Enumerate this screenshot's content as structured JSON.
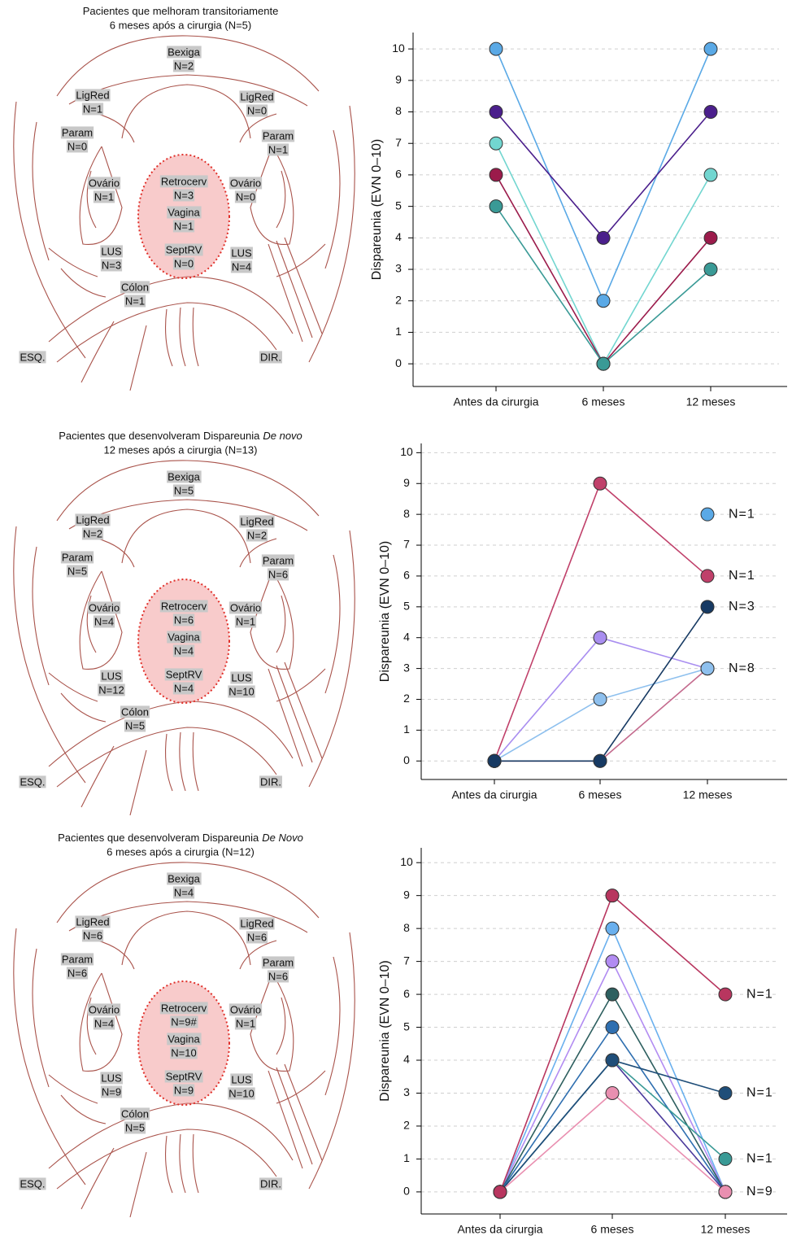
{
  "diagrams": [
    {
      "title": [
        "Pacientes que melhoram transitoriamente",
        "6 meses após a cirurgia (N=5)"
      ],
      "labels": [
        {
          "name": "Bexiga",
          "count": "N=2"
        },
        {
          "name": "LigRed",
          "count": "N=1"
        },
        {
          "name": "LigRed",
          "count": "N=0"
        },
        {
          "name": "Param",
          "count": "N=0"
        },
        {
          "name": "Param",
          "count": "N=1"
        },
        {
          "name": "Ovário",
          "count": "N=1"
        },
        {
          "name": "Ovário",
          "count": "N=0"
        },
        {
          "name": "Retrocerv",
          "count": "N=3"
        },
        {
          "name": "Vagina",
          "count": "N=1"
        },
        {
          "name": "SeptRV",
          "count": "N=0"
        },
        {
          "name": "LUS",
          "count": "N=3"
        },
        {
          "name": "LUS",
          "count": "N=4"
        },
        {
          "name": "Cólon",
          "count": "N=1"
        }
      ],
      "left": "ESQ.",
      "right": "DIR."
    },
    {
      "title": [
        "Pacientes que desenvolveram Dispareunia",
        "12 meses após a cirurgia (N=13)"
      ],
      "title_italic": "De novo",
      "labels": [
        {
          "name": "Bexiga",
          "count": "N=5"
        },
        {
          "name": "LigRed",
          "count": "N=2"
        },
        {
          "name": "LigRed",
          "count": "N=2"
        },
        {
          "name": "Param",
          "count": "N=5"
        },
        {
          "name": "Param",
          "count": "N=6"
        },
        {
          "name": "Ovário",
          "count": "N=4"
        },
        {
          "name": "Ovário",
          "count": "N=1"
        },
        {
          "name": "Retrocerv",
          "count": "N=6"
        },
        {
          "name": "Vagina",
          "count": "N=4"
        },
        {
          "name": "SeptRV",
          "count": "N=4"
        },
        {
          "name": "LUS",
          "count": "N=12"
        },
        {
          "name": "LUS",
          "count": "N=10"
        },
        {
          "name": "Cólon",
          "count": "N=5"
        }
      ],
      "left": "ESQ.",
      "right": "DIR."
    },
    {
      "title": [
        "Pacientes que desenvolveram Dispareunia",
        "6 meses após a cirurgia (N=12)"
      ],
      "title_italic": "De Novo",
      "labels": [
        {
          "name": "Bexiga",
          "count": "N=4"
        },
        {
          "name": "LigRed",
          "count": "N=6"
        },
        {
          "name": "LigRed",
          "count": "N=6"
        },
        {
          "name": "Param",
          "count": "N=6"
        },
        {
          "name": "Param",
          "count": "N=6"
        },
        {
          "name": "Ovário",
          "count": "N=4"
        },
        {
          "name": "Ovário",
          "count": "N=1"
        },
        {
          "name": "Retrocerv",
          "count": "N=9#"
        },
        {
          "name": "Vagina",
          "count": "N=10"
        },
        {
          "name": "SeptRV",
          "count": "N=9"
        },
        {
          "name": "LUS",
          "count": "N=9"
        },
        {
          "name": "LUS",
          "count": "N=10"
        },
        {
          "name": "Cólon",
          "count": "N=5"
        }
      ],
      "left": "ESQ.",
      "right": "DIR."
    }
  ],
  "chart_data": [
    {
      "type": "line",
      "y_label": "Dispareunia (EVN 0–10)",
      "categories": [
        "Antes da cirurgia",
        "6 meses",
        "12 meses"
      ],
      "ylim": [
        -0.72,
        10.52
      ],
      "yticks": [
        0,
        1,
        2,
        3,
        4,
        5,
        6,
        7,
        8,
        9,
        10
      ],
      "grid": true,
      "series": [
        {
          "color": "#5aa9e6",
          "values": [
            10,
            2,
            10
          ]
        },
        {
          "color": "#4b1f8c",
          "values": [
            8,
            4,
            8
          ]
        },
        {
          "color": "#72d6d0",
          "values": [
            7,
            0,
            6
          ]
        },
        {
          "color": "#9b1b4b",
          "values": [
            6,
            0,
            4
          ]
        },
        {
          "color": "#3a9a96",
          "values": [
            5,
            0,
            3
          ]
        }
      ]
    },
    {
      "type": "line",
      "y_label": "Dispareunia (EVN 0–10)",
      "categories": [
        "Antes da cirurgia",
        "6 meses",
        "12 meses"
      ],
      "ylim": [
        -0.6,
        10.3
      ],
      "yticks": [
        0,
        1,
        2,
        3,
        4,
        5,
        6,
        7,
        8,
        9,
        10
      ],
      "grid": true,
      "series": [
        {
          "color": "#c0406a",
          "values": [
            0,
            9,
            6
          ],
          "end_label": "N=1"
        },
        {
          "color": "#c46b8e",
          "values": [
            0,
            0,
            3
          ]
        },
        {
          "color": "#a98ef0",
          "values": [
            0,
            4,
            3
          ]
        },
        {
          "color": "#8ec0ee",
          "values": [
            0,
            2,
            3
          ],
          "end_label": "N=8"
        },
        {
          "color": "#173a63",
          "values": [
            0,
            0,
            5
          ],
          "end_label": "N=3"
        },
        {
          "color": "#5aa9e6",
          "values": [
            null,
            null,
            8
          ],
          "end_label": "N=1"
        }
      ]
    },
    {
      "type": "line",
      "y_label": "Dispareunia (EVN 0–10)",
      "categories": [
        "Antes da cirurgia",
        "6 meses",
        "12 meses"
      ],
      "ylim": [
        -0.67,
        10.45
      ],
      "yticks": [
        0,
        1,
        2,
        3,
        4,
        5,
        6,
        7,
        8,
        9,
        10
      ],
      "grid": true,
      "series": [
        {
          "color": "#6ab0ee",
          "values": [
            0,
            8,
            0
          ]
        },
        {
          "color": "#b28cf2",
          "values": [
            0,
            7,
            0
          ]
        },
        {
          "color": "#2d5f5f",
          "values": [
            0,
            6,
            0
          ]
        },
        {
          "color": "#2f6fb0",
          "values": [
            0,
            5,
            0
          ]
        },
        {
          "color": "#4b3a9c",
          "values": [
            0,
            4,
            0
          ]
        },
        {
          "color": "#3a9a96",
          "values": [
            0,
            4,
            1
          ],
          "end_label": "N=1"
        },
        {
          "color": "#1f4e79",
          "values": [
            0,
            4,
            3
          ],
          "end_label": "N=1"
        },
        {
          "color": "#e98fb0",
          "values": [
            0,
            3,
            0
          ],
          "end_label": "N=9"
        },
        {
          "color": "#b8365f",
          "values": [
            0,
            9,
            6
          ],
          "end_label": "N=1"
        }
      ]
    }
  ]
}
